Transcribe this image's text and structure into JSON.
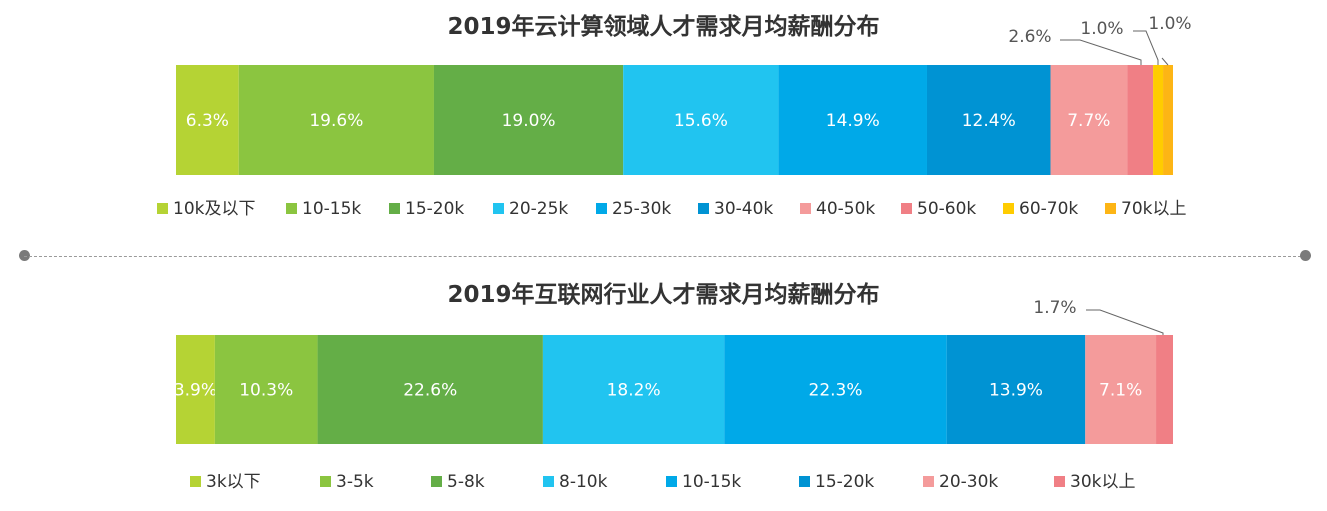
{
  "chart_data": [
    {
      "type": "bar",
      "orientation": "horizontal-stacked-100",
      "title": "2019年云计算领域人才需求月均薪酬分布",
      "categories": [
        "10k及以下",
        "10-15k",
        "15-20k",
        "20-25k",
        "25-30k",
        "30-40k",
        "40-50k",
        "50-60k",
        "60-70k",
        "70k以上"
      ],
      "values": [
        6.3,
        19.6,
        19.0,
        15.6,
        14.9,
        12.4,
        7.7,
        2.6,
        1.0,
        1.0
      ],
      "labels": [
        "6.3%",
        "19.6%",
        "19.0%",
        "15.6%",
        "14.9%",
        "12.4%",
        "7.7%",
        "2.6%",
        "1.0%",
        "1.0%"
      ],
      "colors": [
        "#b5d334",
        "#8bc540",
        "#64ae47",
        "#21c4f0",
        "#00a9e8",
        "#0093d3",
        "#f49b9b",
        "#f07f85",
        "#ffcc00",
        "#fdb515"
      ],
      "legend_position": "bottom"
    },
    {
      "type": "bar",
      "orientation": "horizontal-stacked-100",
      "title": "2019年互联网行业人才需求月均薪酬分布",
      "categories": [
        "3k以下",
        "3-5k",
        "5-8k",
        "8-10k",
        "10-15k",
        "15-20k",
        "20-30k",
        "30k以上"
      ],
      "values": [
        3.9,
        10.3,
        22.6,
        18.2,
        22.3,
        13.9,
        7.1,
        1.7
      ],
      "labels": [
        "3.9%",
        "10.3%",
        "22.6%",
        "18.2%",
        "22.3%",
        "13.9%",
        "7.1%",
        "1.7%"
      ],
      "colors": [
        "#b5d334",
        "#8bc540",
        "#64ae47",
        "#21c4f0",
        "#00a9e8",
        "#0093d3",
        "#f49b9b",
        "#f07f85"
      ],
      "legend_position": "bottom"
    }
  ]
}
